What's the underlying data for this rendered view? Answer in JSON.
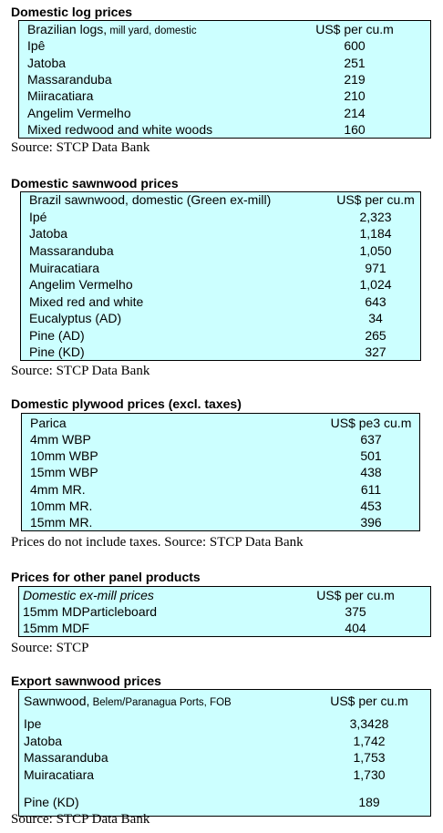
{
  "sections": [
    {
      "title": "Domestic log prices",
      "header": {
        "label": "Brazilian logs,",
        "note": "mill yard, domestic",
        "value_header": "US$ per cu.m"
      },
      "rows": [
        [
          "Ipê",
          "600"
        ],
        [
          "Jatoba",
          "251"
        ],
        [
          "Massaranduba",
          "219"
        ],
        [
          "Miiracatiara",
          "210"
        ],
        [
          "Angelim Vermelho",
          "214"
        ],
        [
          "Mixed redwood and white woods",
          "160"
        ]
      ],
      "source": "Source: STCP Data Bank"
    },
    {
      "title": "Domestic sawnwood prices",
      "header": {
        "label": "Brazil sawnwood, domestic (Green ex-mill)",
        "value_header": "US$ per cu.m"
      },
      "rows": [
        [
          "Ipé",
          "2,323"
        ],
        [
          "Jatoba",
          "1,184"
        ],
        [
          "Massaranduba",
          "1,050"
        ],
        [
          "Muiracatiara",
          "971"
        ],
        [
          "Angelim Vermelho",
          "1,024"
        ],
        [
          "Mixed red and white",
          "643"
        ],
        [
          "Eucalyptus (AD)",
          "34"
        ],
        [
          "Pine (AD)",
          "265"
        ],
        [
          "Pine (KD)",
          "327"
        ]
      ],
      "source": "Source: STCP Data Bank"
    },
    {
      "title": "Domestic plywood prices (excl. taxes)",
      "header": {
        "label": "Parica",
        "value_header": "US$ pe3 cu.m"
      },
      "rows": [
        [
          "4mm WBP",
          "637"
        ],
        [
          "10mm WBP",
          "501"
        ],
        [
          "15mm WBP",
          "438"
        ],
        [
          "4mm MR.",
          "611"
        ],
        [
          "10mm MR.",
          "453"
        ],
        [
          "15mm MR.",
          "396"
        ]
      ],
      "source": "Prices do not include taxes. Source: STCP Data Bank"
    },
    {
      "title": "Prices for other panel products",
      "header": {
        "label": "Domestic ex-mill prices",
        "value_header": "US$ per cu.m"
      },
      "rows": [
        [
          "15mm MDParticleboard",
          "375"
        ],
        [
          "15mm MDF",
          "404"
        ]
      ],
      "source": "Source: STCP"
    },
    {
      "title": "Export sawnwood prices",
      "header": {
        "label": "Sawnwood,",
        "note": "Belem/Paranagua Ports, FOB",
        "value_header": "US$ per cu.m"
      },
      "rows": [
        [
          "Ipe",
          "3,3428"
        ],
        [
          "Jatoba",
          "1,742"
        ],
        [
          "Massaranduba",
          "1,753"
        ],
        [
          "Muiracatiara",
          "1,730"
        ],
        [
          "Pine (KD)",
          "189"
        ]
      ],
      "source": "Source: STCP Data Bank"
    }
  ]
}
